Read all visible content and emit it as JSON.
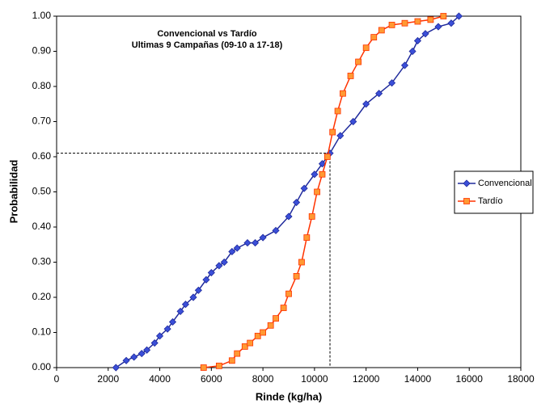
{
  "chart_data": {
    "type": "line",
    "title": "Convencional vs Tardío",
    "subtitle": "Ultimas 9 Campañas (09-10 a 17-18)",
    "x_label": "Rinde (kg/ha)",
    "y_label": "Probabilidad",
    "xlim": [
      0,
      18000
    ],
    "xticks": [
      0,
      2000,
      4000,
      6000,
      8000,
      10000,
      12000,
      14000,
      16000,
      18000
    ],
    "ylim": [
      0,
      1
    ],
    "yticks": [
      {
        "value": 0,
        "label": "0.00"
      },
      {
        "value": 0.1,
        "label": "0.10"
      },
      {
        "value": 0.2,
        "label": "0.20"
      },
      {
        "value": 0.3,
        "label": "0.30"
      },
      {
        "value": 0.4,
        "label": "0.40"
      },
      {
        "value": 0.5,
        "label": "0.50"
      },
      {
        "value": 0.6,
        "label": "0.60"
      },
      {
        "value": 0.7,
        "label": "0.70"
      },
      {
        "value": 0.8,
        "label": "0.80"
      },
      {
        "value": 0.9,
        "label": "0.90"
      },
      {
        "value": 1,
        "label": "1.00"
      }
    ],
    "legend": "right",
    "reference": {
      "x": 10600,
      "y": 0.61
    },
    "series": [
      {
        "name": "Convencional",
        "color": "#1f2a9c",
        "marker": "diamond",
        "marker_color": "#3b4fd8",
        "x": [
          2300,
          2700,
          3000,
          3300,
          3500,
          3800,
          4000,
          4300,
          4500,
          4800,
          5000,
          5300,
          5500,
          5800,
          6000,
          6300,
          6500,
          6800,
          7000,
          7400,
          7700,
          8000,
          8500,
          9000,
          9300,
          9600,
          10000,
          10300,
          10600,
          11000,
          11500,
          12000,
          12500,
          13000,
          13500,
          13800,
          14000,
          14300,
          14800,
          15300,
          15600
        ],
        "values": [
          0.0,
          0.02,
          0.03,
          0.04,
          0.05,
          0.07,
          0.09,
          0.11,
          0.13,
          0.16,
          0.18,
          0.2,
          0.22,
          0.25,
          0.27,
          0.29,
          0.3,
          0.33,
          0.34,
          0.355,
          0.355,
          0.37,
          0.39,
          0.43,
          0.47,
          0.51,
          0.55,
          0.58,
          0.61,
          0.66,
          0.7,
          0.75,
          0.78,
          0.81,
          0.86,
          0.9,
          0.93,
          0.95,
          0.97,
          0.98,
          1.0
        ]
      },
      {
        "name": "Tardío",
        "color": "#ff3300",
        "marker": "square",
        "marker_color": "#ff9933",
        "x": [
          5700,
          6300,
          6800,
          7000,
          7300,
          7500,
          7800,
          8000,
          8300,
          8500,
          8800,
          9000,
          9300,
          9500,
          9700,
          9900,
          10100,
          10300,
          10500,
          10700,
          10900,
          11100,
          11400,
          11700,
          12000,
          12300,
          12600,
          13000,
          13500,
          14000,
          14500,
          15000
        ],
        "values": [
          0.0,
          0.005,
          0.02,
          0.04,
          0.06,
          0.07,
          0.09,
          0.1,
          0.12,
          0.14,
          0.17,
          0.21,
          0.26,
          0.3,
          0.37,
          0.43,
          0.5,
          0.55,
          0.6,
          0.67,
          0.73,
          0.78,
          0.83,
          0.87,
          0.91,
          0.94,
          0.96,
          0.975,
          0.98,
          0.985,
          0.99,
          1.0
        ]
      }
    ]
  }
}
